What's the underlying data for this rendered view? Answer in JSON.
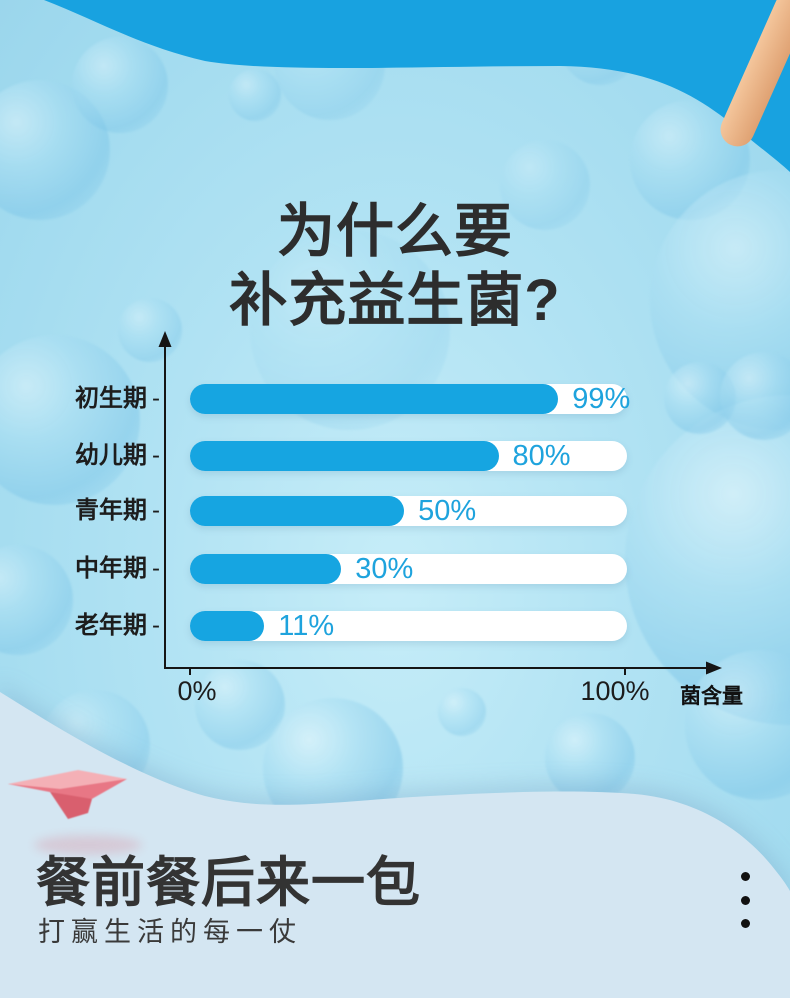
{
  "header": {
    "title_line1": "为什么要",
    "title_line2": "补充益生菌?"
  },
  "chart_data": {
    "type": "bar",
    "orientation": "horizontal",
    "title": "",
    "categories": [
      "初生期",
      "幼儿期",
      "青年期",
      "中年期",
      "老年期"
    ],
    "values": [
      99,
      80,
      50,
      30,
      11
    ],
    "value_labels": [
      "99%",
      "80%",
      "50%",
      "30%",
      "11%"
    ],
    "x_ticks": [
      "0%",
      "100%"
    ],
    "xlim": [
      0,
      100
    ],
    "xlabel": "菌含量",
    "ylabel": "",
    "tick_char": "-",
    "grid": "off",
    "legend": "none",
    "bar_color": "#16a5e1",
    "track_color": "#ffffff",
    "value_text_color": "#1ea3dd",
    "axis_color": "#151515"
  },
  "footer": {
    "heading": "餐前餐后来一包",
    "subheading": "打赢生活的每一仗",
    "menu_icon": "vertical-ellipsis"
  },
  "decor": {
    "top_band_color": "#18a2e0",
    "panel_color": "#d4e6f2",
    "stick_icon": "wooden-stick",
    "plane_icon": "paper-plane",
    "background_theme": "probiotic-bacteria-spheres"
  }
}
